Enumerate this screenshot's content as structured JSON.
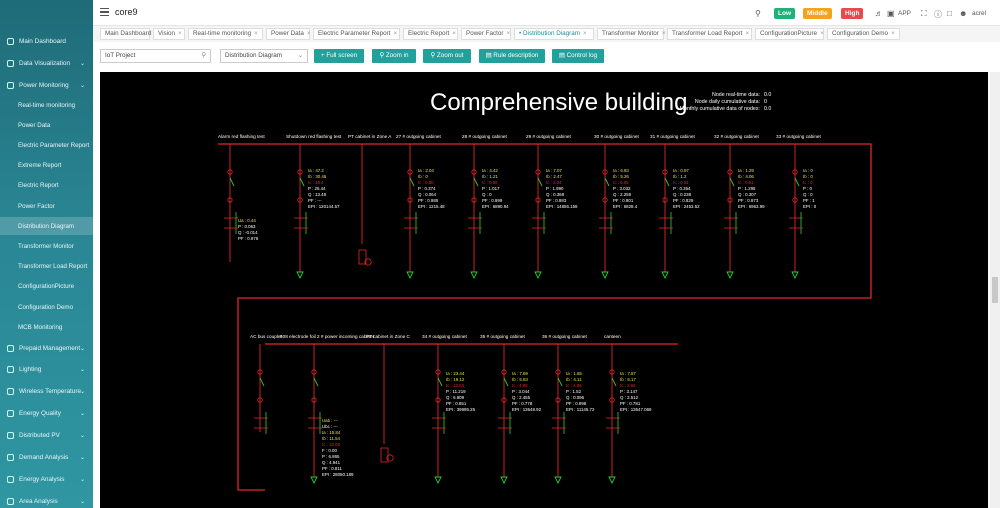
{
  "app": {
    "title": "core9",
    "user": "acrel",
    "app_label": "APP"
  },
  "alarms": {
    "low": "Low",
    "middle": "Middle",
    "high": "High",
    "low_color": "#22b07a",
    "middle_color": "#f2a51a",
    "high_color": "#e8494a"
  },
  "sidebar": {
    "top_items": [
      {
        "label": "Main Dashboard"
      },
      {
        "label": "Data Visualization"
      },
      {
        "label": "Power Monitoring"
      }
    ],
    "sub_items": [
      {
        "label": "Real-time monitoring"
      },
      {
        "label": "Power Data"
      },
      {
        "label": "Electric Parameter Report"
      },
      {
        "label": "Extreme Report"
      },
      {
        "label": "Electric Report"
      },
      {
        "label": "Power Factor"
      },
      {
        "label": "Distribution Diagram"
      },
      {
        "label": "Transformer Monitor"
      },
      {
        "label": "Transformer Load Report"
      },
      {
        "label": "ConfigurationPicture"
      },
      {
        "label": "Configuration Demo"
      },
      {
        "label": "MCB Monitoring"
      }
    ],
    "bottom_items": [
      {
        "label": "Prepaid Management"
      },
      {
        "label": "Lighting"
      },
      {
        "label": "Wireless Temperature"
      },
      {
        "label": "Energy Quality"
      },
      {
        "label": "Distributed PV"
      },
      {
        "label": "Demand Analysis"
      },
      {
        "label": "Energy Analysis"
      },
      {
        "label": "Area Analysis"
      }
    ]
  },
  "tabs": [
    {
      "label": "Main Dashboard"
    },
    {
      "label": "Vision"
    },
    {
      "label": "Real-time monitoring"
    },
    {
      "label": "Power Data"
    },
    {
      "label": "Electric Parameter Report"
    },
    {
      "label": "Electric Report"
    },
    {
      "label": "Power Factor"
    },
    {
      "label": "Distribution Diagram"
    },
    {
      "label": "Transformer Monitor"
    },
    {
      "label": "Transformer Load Report"
    },
    {
      "label": "ConfigurationPicture"
    },
    {
      "label": "Configuration Demo"
    }
  ],
  "toolbar": {
    "project": "IoT Project",
    "view": "Distribution Diagram",
    "full_screen": "Full screen",
    "zoom_in": "Zoom in",
    "zoom_out": "Zoom out",
    "rule_description": "Rule description",
    "control_log": "Control log"
  },
  "diagram": {
    "title": "Comprehensive building",
    "stats": [
      {
        "label": "Node real-time data:",
        "value": "0.0"
      },
      {
        "label": "Node daily cumulative data:",
        "value": "0"
      },
      {
        "label": "Monthly cumulative data of nodes:",
        "value": "0.0"
      }
    ],
    "row1": [
      {
        "name": "Alarm red flashing test",
        "vals": [
          "Ua  :  0.44",
          "P  :  0.063",
          "Q  :  -0.014",
          "PF  :  0.976"
        ]
      },
      {
        "name": "Shutdown red flashing test",
        "vals": [
          "Ia  :  47.2",
          "Ib  :  30.46",
          "Ic  :  48.4",
          "P  :  25.44",
          "Q  :  13.48",
          "PF  :  ---",
          "EPI  :  120144.57"
        ]
      },
      {
        "name": "PT cabinet in Zone A",
        "vals": []
      },
      {
        "name": "27 # outgoing cabinet",
        "vals": [
          "Ia  :  2.04",
          "Ib  :  0",
          "Ic  :  0.80",
          "P  :  0.374",
          "Q  :  0.064",
          "PF  :  0.985",
          "EPI  :  1215.48"
        ]
      },
      {
        "name": "28 # outgoing cabinet",
        "vals": [
          "Ia  :  4.42",
          "Ib  :  1.21",
          "Ic  :  0.86",
          "P  :  1.017",
          "Q  :  0",
          "PF  :  0.999",
          "EPI  :  6890.94"
        ]
      },
      {
        "name": "29 # outgoing cabinet",
        "vals": [
          "Ia  :  7.07",
          "Ib  :  2.47",
          "Ic  :  2.04",
          "P  :  1.990",
          "Q  :  0.368",
          "PF  :  0.983",
          "EPI  :  14855.159"
        ]
      },
      {
        "name": "30 # outgoing cabinet",
        "vals": [
          "Ia  :  6.83",
          "Ib  :  5.26",
          "Ic  :  6.05",
          "P  :  3.032",
          "Q  :  2.259",
          "PF  :  0.801",
          "EPI  :  6828.4"
        ]
      },
      {
        "name": "31 # outgoing cabinet",
        "vals": [
          "Ia  :  0.97",
          "Ib  :  1.2",
          "Ic  :  0.31",
          "P  :  0.354",
          "Q  :  0.238",
          "PF  :  0.829",
          "EPI  :  2453.52"
        ]
      },
      {
        "name": "32 # outgoing cabinet",
        "vals": [
          "Ia  :  1.29",
          "Ib  :  4.06",
          "Ic  :  0.61",
          "P  :  1.295",
          "Q  :  0.307",
          "PF  :  0.973",
          "EPI  :  6963.99"
        ]
      },
      {
        "name": "33 # outgoing cabinet",
        "vals": [
          "Ia  :  0",
          "Ib  :  0",
          "Ic  :  0",
          "P  :  0",
          "Q  :  0",
          "PF  :  1",
          "EPI  :  0"
        ]
      }
    ],
    "row2": [
      {
        "name": "AC bus coupler",
        "vals": []
      },
      {
        "name": "508 electrode foil 2 # power incoming cabinet",
        "vals": [
          "Uab  :  ---",
          "Ubc  :  ---",
          "Ia  :  15.84",
          "Ib  :  11.54",
          "Ic  :  13.00",
          "F  :  0.00",
          "P  :  6.865",
          "Q  :  4.941",
          "PF  :  0.811",
          "EPI  :  28050.189"
        ]
      },
      {
        "name": "PT cabinet in Zone C",
        "vals": []
      },
      {
        "name": "34 # outgoing cabinet",
        "vals": [
          "Ia  :  23.44",
          "Ib  :  19.12",
          "Ic  :  13.64",
          "P  :  11.219",
          "Q  :  6.909",
          "PF  :  0.851",
          "EPI  :  39995.25"
        ]
      },
      {
        "name": "35 # outgoing cabinet",
        "vals": [
          "Ia  :  7.69",
          "Ib  :  5.53",
          "Ic  :  4.86",
          "P  :  3.044",
          "Q  :  2.455",
          "PF  :  0.778",
          "EPI  :  13648.92"
        ]
      },
      {
        "name": "36 # outgoing cabinet",
        "vals": [
          "Ia  :  1.65",
          "Ib  :  4.11",
          "Ic  :  2.86",
          "P  :  1.52",
          "Q  :  0.096",
          "PF  :  0.998",
          "EPI  :  11145.72"
        ]
      },
      {
        "name": "canteen",
        "vals": [
          "Ia  :  7.87",
          "Ib  :  5.17",
          "Ic  :  3.66",
          "P  :  3.147",
          "Q  :  2.512",
          "PF  :  0.781",
          "EPI  :  13547.069"
        ]
      }
    ]
  }
}
